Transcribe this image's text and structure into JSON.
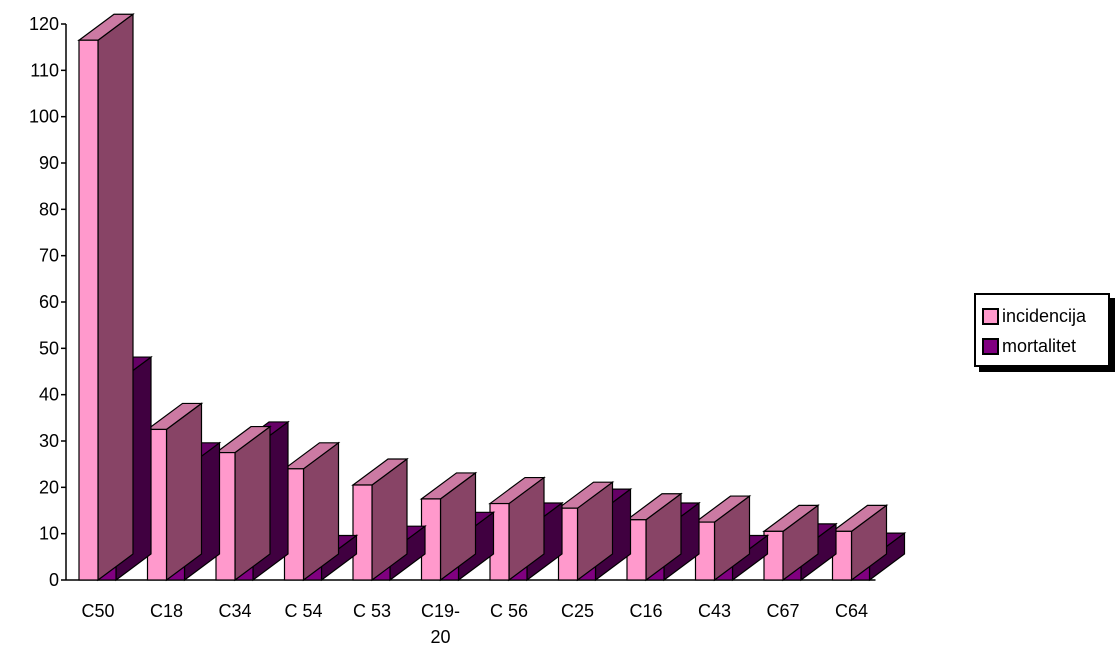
{
  "chart_data": {
    "type": "bar",
    "categories": [
      "C50",
      "C18",
      "C34",
      "C 54",
      "C 53",
      "C19-20",
      "C 56",
      "C25",
      "C16",
      "C43",
      "C67",
      "C64"
    ],
    "category_lines": [
      [
        "C50"
      ],
      [
        "C18"
      ],
      [
        "C34"
      ],
      [
        "C 54"
      ],
      [
        "C 53"
      ],
      [
        "C19-",
        "20"
      ],
      [
        "C 56"
      ],
      [
        "C25"
      ],
      [
        "C16"
      ],
      [
        "C43"
      ],
      [
        "C67"
      ],
      [
        "C64"
      ]
    ],
    "series": [
      {
        "name": "incidencija",
        "values": [
          116.5,
          32.5,
          27.5,
          24,
          20.5,
          17.5,
          16.5,
          15.5,
          13,
          12.5,
          10.5,
          10.5
        ],
        "color": "#ff99cc",
        "side_color": "#884466",
        "top_color": "#cc7aa3"
      },
      {
        "name": "mortalitet",
        "values": [
          42.5,
          24,
          28.5,
          4,
          6,
          9,
          11,
          14,
          11,
          4,
          6.5,
          4.5
        ],
        "color": "#800080",
        "side_color": "#400040",
        "top_color": "#660066"
      }
    ],
    "ylim": [
      0,
      120
    ],
    "yticks": [
      0,
      10,
      20,
      30,
      40,
      50,
      60,
      70,
      80,
      90,
      100,
      110,
      120
    ],
    "grid": false,
    "legend_position": "right"
  }
}
